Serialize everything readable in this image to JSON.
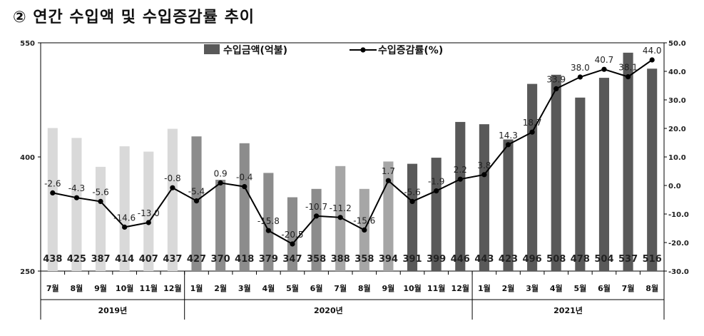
{
  "title": "② 연간 수입액 및 수입증감률 추이",
  "colors": {
    "bar_2019": "#d9d9d9",
    "bar_2020_early": "#8c8c8c",
    "bar_2020_late": "#a6a6a6",
    "bar_dark": "#595959",
    "line": "#000000"
  },
  "chart_data": {
    "type": "bar+line",
    "categories": [
      "7월",
      "8월",
      "9월",
      "10월",
      "11월",
      "12월",
      "1월",
      "2월",
      "3월",
      "4월",
      "5월",
      "6월",
      "7월",
      "8월",
      "9월",
      "10월",
      "11월",
      "12월",
      "1월",
      "2월",
      "3월",
      "4월",
      "5월",
      "6월",
      "7월",
      "8월"
    ],
    "year_groups": [
      {
        "label": "2019년",
        "count": 6
      },
      {
        "label": "2020년",
        "count": 12
      },
      {
        "label": "2021년",
        "count": 8
      }
    ],
    "series": [
      {
        "name": "수입금액(억불)",
        "type": "bar",
        "axis": "left",
        "values": [
          438,
          425,
          387,
          414,
          407,
          437,
          427,
          370,
          418,
          379,
          347,
          358,
          388,
          358,
          394,
          391,
          399,
          446,
          443,
          423,
          496,
          508,
          478,
          504,
          537,
          516
        ]
      },
      {
        "name": "수입증감률(%)",
        "type": "line",
        "axis": "right",
        "values": [
          -2.6,
          -4.3,
          -5.6,
          -14.6,
          -13.0,
          -0.8,
          -5.4,
          0.9,
          -0.4,
          -15.8,
          -20.5,
          -10.7,
          -11.2,
          -15.6,
          1.7,
          -5.6,
          -1.9,
          2.2,
          3.8,
          14.3,
          18.7,
          33.9,
          38.0,
          40.7,
          38.1,
          44.0
        ]
      }
    ],
    "data_labels_bar": [
      "438",
      "425",
      "387",
      "414",
      "407",
      "437",
      "427",
      "370",
      "418",
      "379",
      "347",
      "358",
      "388",
      "358",
      "394",
      "391",
      "399",
      "446",
      "443",
      "423",
      "496",
      "508",
      "478",
      "504",
      "537",
      "516"
    ],
    "data_labels_line": [
      "-2.6",
      "-4.3",
      "-5.6",
      "-14.6",
      "-13.0",
      "-0.8",
      "-5.4",
      "0.9",
      "-0.4",
      "-15.8",
      "-20.5",
      "-10.7",
      "-11.2",
      "-15.6",
      "1.7",
      "-5.6",
      "-1.9",
      "2.2",
      "3.8",
      "14.3",
      "18.7",
      "33.9",
      "38.0",
      "40.7",
      "38.1",
      "44.0"
    ],
    "y_left": {
      "min": 250,
      "max": 550,
      "ticks": [
        250,
        400,
        550
      ],
      "tick_labels": [
        "250",
        "400",
        "550"
      ]
    },
    "y_right": {
      "min": -30,
      "max": 50,
      "ticks": [
        -30,
        -20,
        -10,
        0,
        10,
        20,
        30,
        40,
        50
      ],
      "tick_labels": [
        "-30.0",
        "-20.0",
        "-10.0",
        "0.0",
        "10.0",
        "20.0",
        "30.0",
        "40.0",
        "50.0"
      ]
    },
    "legend": {
      "position": "top-center",
      "entries": [
        "수입금액(억불)",
        "수입증감률(%)"
      ]
    },
    "grid": false
  }
}
